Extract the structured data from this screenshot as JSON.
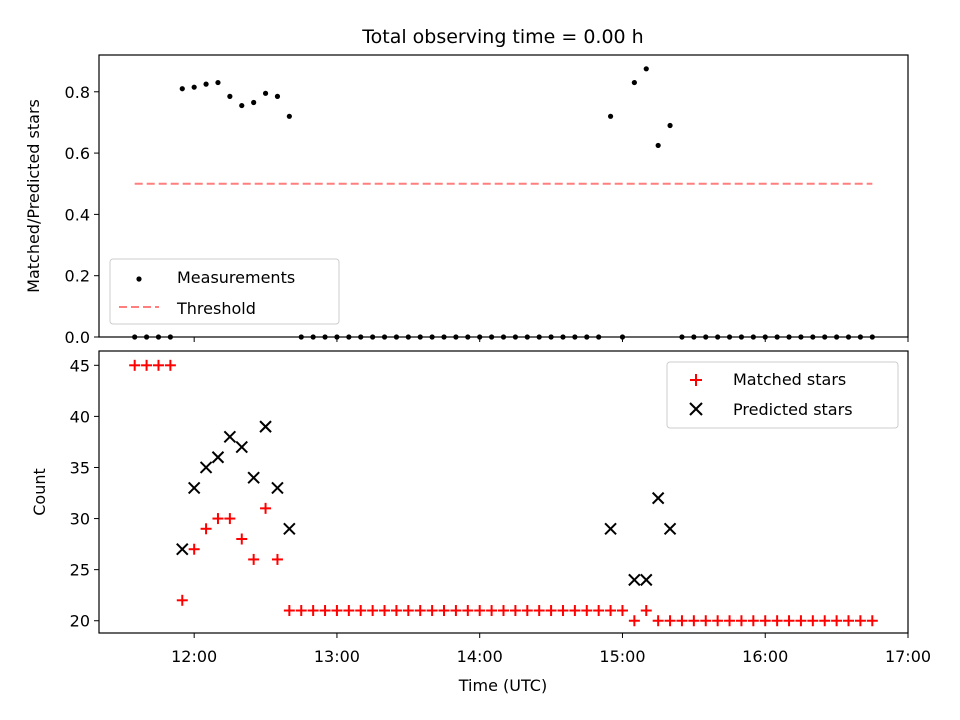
{
  "colors": {
    "measurement": "#000000",
    "threshold": "#ff7f7f",
    "matched": "#ff0000",
    "predicted": "#000000",
    "axes": "#000000",
    "legend_border": "#cccccc"
  },
  "chart_data": [
    {
      "type": "scatter",
      "title": "Total observing time = 0.00 h",
      "xlabel": "",
      "ylabel": "Matched/Predicted stars",
      "xlim": [
        "11:20",
        "17:00"
      ],
      "ylim": [
        0,
        0.92
      ],
      "yticks": [
        0.0,
        0.2,
        0.4,
        0.6,
        0.8
      ],
      "ytick_labels": [
        "0.0",
        "0.2",
        "0.4",
        "0.6",
        "0.8"
      ],
      "grid": false,
      "legend": {
        "location": "lower-left",
        "entries": [
          {
            "label": "Measurements",
            "marker": "dot"
          },
          {
            "label": "Threshold",
            "marker": "dashed-line"
          }
        ]
      },
      "series": [
        {
          "name": "Measurements",
          "marker": "dot",
          "x": [
            "11:35",
            "11:40",
            "11:45",
            "11:50",
            "11:55",
            "12:00",
            "12:05",
            "12:10",
            "12:15",
            "12:20",
            "12:25",
            "12:30",
            "12:35",
            "12:40",
            "12:45",
            "12:50",
            "12:55",
            "13:00",
            "13:05",
            "13:10",
            "13:15",
            "13:20",
            "13:25",
            "13:30",
            "13:35",
            "13:40",
            "13:45",
            "13:50",
            "13:55",
            "14:00",
            "14:05",
            "14:10",
            "14:15",
            "14:20",
            "14:25",
            "14:30",
            "14:35",
            "14:40",
            "14:45",
            "14:50",
            "14:55",
            "15:00",
            "15:05",
            "15:10",
            "15:15",
            "15:20",
            "15:25",
            "15:30",
            "15:35",
            "15:40",
            "15:45",
            "15:50",
            "15:55",
            "16:00",
            "16:05",
            "16:10",
            "16:15",
            "16:20",
            "16:25",
            "16:30",
            "16:35",
            "16:40",
            "16:45"
          ],
          "y": [
            0,
            0,
            0,
            0,
            0.81,
            0.815,
            0.825,
            0.83,
            0.785,
            0.755,
            0.765,
            0.795,
            0.785,
            0.72,
            0,
            0,
            0,
            0,
            0,
            0,
            0,
            0,
            0,
            0,
            0,
            0,
            0,
            0,
            0,
            0,
            0,
            0,
            0,
            0,
            0,
            0,
            0,
            0,
            0,
            0,
            0.72,
            0,
            0.83,
            0.875,
            0.625,
            0.69,
            0,
            0,
            0,
            0,
            0,
            0,
            0,
            0,
            0,
            0,
            0,
            0,
            0,
            0,
            0,
            0,
            0
          ]
        },
        {
          "name": "Threshold",
          "style": "dashed-line",
          "x": [
            "11:35",
            "16:45"
          ],
          "y": [
            0.5,
            0.5
          ]
        }
      ]
    },
    {
      "type": "scatter",
      "title": "",
      "xlabel": "Time (UTC)",
      "ylabel": "Count",
      "xlim": [
        "11:20",
        "17:00"
      ],
      "ylim": [
        18.8,
        46.4
      ],
      "xticks": [
        "12:00",
        "13:00",
        "14:00",
        "15:00",
        "16:00",
        "17:00"
      ],
      "yticks": [
        20,
        25,
        30,
        35,
        40,
        45
      ],
      "ytick_labels": [
        "20",
        "25",
        "30",
        "35",
        "40",
        "45"
      ],
      "grid": false,
      "legend": {
        "location": "top-right",
        "entries": [
          {
            "label": "Matched stars",
            "marker": "plus"
          },
          {
            "label": "Predicted stars",
            "marker": "x"
          }
        ]
      },
      "series": [
        {
          "name": "Matched stars",
          "marker": "plus",
          "x": [
            "11:35",
            "11:40",
            "11:45",
            "11:50",
            "11:55",
            "12:00",
            "12:05",
            "12:10",
            "12:15",
            "12:20",
            "12:25",
            "12:30",
            "12:35",
            "12:40",
            "12:45",
            "12:50",
            "12:55",
            "13:00",
            "13:05",
            "13:10",
            "13:15",
            "13:20",
            "13:25",
            "13:30",
            "13:35",
            "13:40",
            "13:45",
            "13:50",
            "13:55",
            "14:00",
            "14:05",
            "14:10",
            "14:15",
            "14:20",
            "14:25",
            "14:30",
            "14:35",
            "14:40",
            "14:45",
            "14:50",
            "14:55",
            "15:00",
            "15:05",
            "15:10",
            "15:15",
            "15:20",
            "15:25",
            "15:30",
            "15:35",
            "15:40",
            "15:45",
            "15:50",
            "15:55",
            "16:00",
            "16:05",
            "16:10",
            "16:15",
            "16:20",
            "16:25",
            "16:30",
            "16:35",
            "16:40",
            "16:45"
          ],
          "y": [
            45,
            45,
            45,
            45,
            22,
            27,
            29,
            30,
            30,
            28,
            26,
            31,
            26,
            21,
            21,
            21,
            21,
            21,
            21,
            21,
            21,
            21,
            21,
            21,
            21,
            21,
            21,
            21,
            21,
            21,
            21,
            21,
            21,
            21,
            21,
            21,
            21,
            21,
            21,
            21,
            21,
            21,
            20,
            21,
            20,
            20,
            20,
            20,
            20,
            20,
            20,
            20,
            20,
            20,
            20,
            20,
            20,
            20,
            20,
            20,
            20,
            20,
            20
          ]
        },
        {
          "name": "Predicted stars",
          "marker": "x",
          "x": [
            "11:55",
            "12:00",
            "12:05",
            "12:10",
            "12:15",
            "12:20",
            "12:25",
            "12:30",
            "12:35",
            "12:40",
            "14:55",
            "15:05",
            "15:10",
            "15:15",
            "15:20"
          ],
          "y": [
            27,
            33,
            35,
            36,
            38,
            37,
            34,
            39,
            33,
            29,
            29,
            24,
            24,
            32,
            29
          ]
        }
      ]
    }
  ]
}
